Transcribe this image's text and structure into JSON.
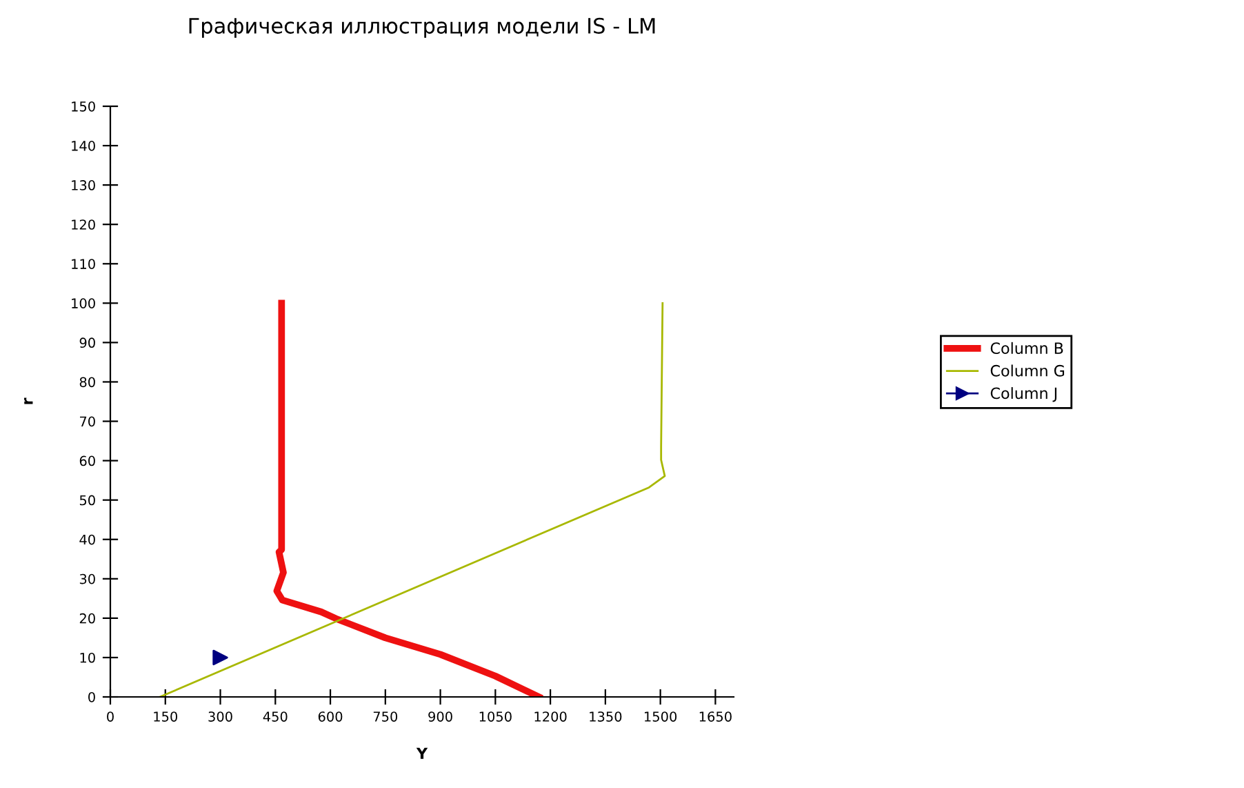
{
  "chart_data": {
    "type": "line",
    "title": "Графическая иллюстрация модели IS - LM",
    "xlabel": "Y",
    "ylabel": "r",
    "xlim": [
      0,
      1700
    ],
    "ylim": [
      0,
      150
    ],
    "xticks": [
      0,
      150,
      300,
      450,
      600,
      750,
      900,
      1050,
      1200,
      1350,
      1500,
      1650
    ],
    "yticks": [
      0,
      10,
      20,
      30,
      40,
      50,
      60,
      70,
      80,
      90,
      100,
      110,
      120,
      130,
      140,
      150
    ],
    "grid": false,
    "legend": "right",
    "series": [
      {
        "name": "Column B",
        "color": "#ee1111",
        "x": [
          467,
          467,
          460,
          472,
          454,
          469,
          575,
          615,
          750,
          900,
          1050,
          1169
        ],
        "values": [
          100,
          37.4,
          36.8,
          31.6,
          26.9,
          24.6,
          21.6,
          19.9,
          15,
          10.8,
          5.3,
          0
        ]
      },
      {
        "name": "Column G",
        "color": "#a8b800",
        "x": [
          135,
          1469,
          1512,
          1502,
          1502,
          1506
        ],
        "values": [
          0,
          53.2,
          56.1,
          60.2,
          63.7,
          100
        ]
      },
      {
        "name": "Column J",
        "color": "#000080",
        "type": "scatter",
        "marker": "triangle",
        "x": [
          300
        ],
        "values": [
          10
        ]
      }
    ]
  }
}
